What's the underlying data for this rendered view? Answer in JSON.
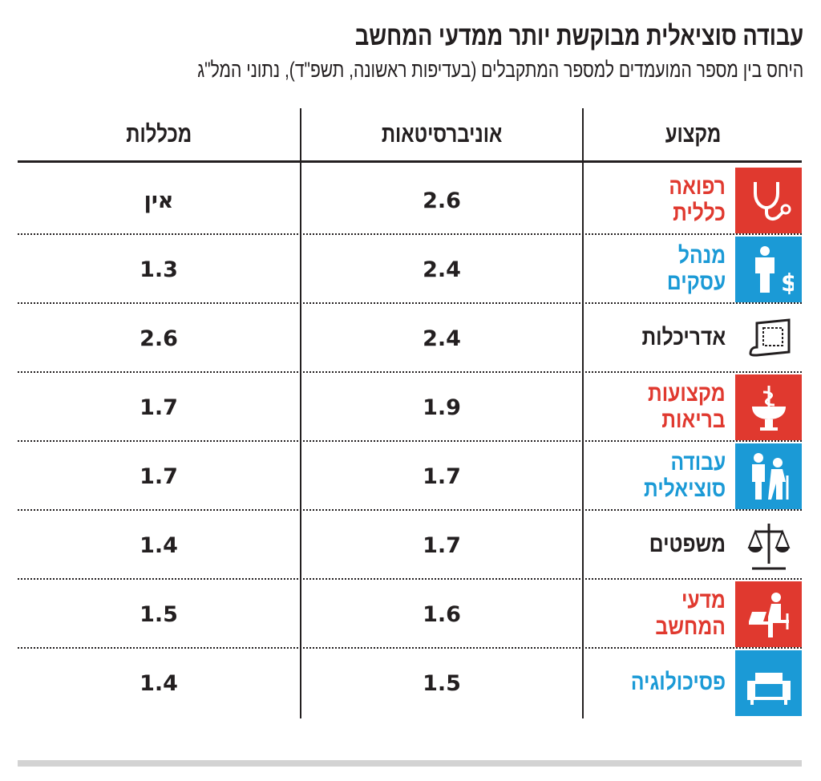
{
  "title": "עבודה סוציאלית מבוקשת יותר ממדעי המחשב",
  "subtitle": "היחס בין מספר המועמדים למספר המתקבלים (בעדיפות ראשונה, תשפ\"ד), נתוני המל\"ג",
  "colors": {
    "red": "#e0392f",
    "blue": "#1b9ad6",
    "black": "#231f20"
  },
  "chart_data": {
    "type": "table",
    "title": "עבודה סוציאלית מבוקשת יותר ממדעי המחשב",
    "subtitle": "היחס בין מספר המועמדים למספר המתקבלים (בעדיפות ראשונה, תשפ\"ד), נתוני המל\"ג",
    "columns": [
      "מקצוע",
      "אוניברסיטאות",
      "מכללות"
    ],
    "rows": [
      {
        "profession": [
          "רפואה",
          "כללית"
        ],
        "color": "red",
        "icon": "stethoscope-icon",
        "universities": "2.6",
        "colleges": "אין"
      },
      {
        "profession": [
          "מנהל",
          "עסקים"
        ],
        "color": "blue",
        "icon": "businessman-dollar-icon",
        "universities": "2.4",
        "colleges": "1.3"
      },
      {
        "profession": [
          "אדריכלות"
        ],
        "color": "black",
        "icon": "blueprint-icon",
        "universities": "2.4",
        "colleges": "2.6"
      },
      {
        "profession": [
          "מקצועות",
          "בריאות"
        ],
        "color": "red",
        "icon": "pharmacy-icon",
        "universities": "1.9",
        "colleges": "1.7"
      },
      {
        "profession": [
          "עבודה",
          "סוציאלית"
        ],
        "color": "blue",
        "icon": "caregiver-elderly-icon",
        "universities": "1.7",
        "colleges": "1.7"
      },
      {
        "profession": [
          "משפטים"
        ],
        "color": "black",
        "icon": "scales-icon",
        "universities": "1.7",
        "colleges": "1.4"
      },
      {
        "profession": [
          "מדעי",
          "המחשב"
        ],
        "color": "red",
        "icon": "person-laptop-icon",
        "universities": "1.6",
        "colleges": "1.5"
      },
      {
        "profession": [
          "פסיכולוגיה"
        ],
        "color": "blue",
        "icon": "armchair-icon",
        "universities": "1.5",
        "colleges": "1.4"
      }
    ]
  }
}
